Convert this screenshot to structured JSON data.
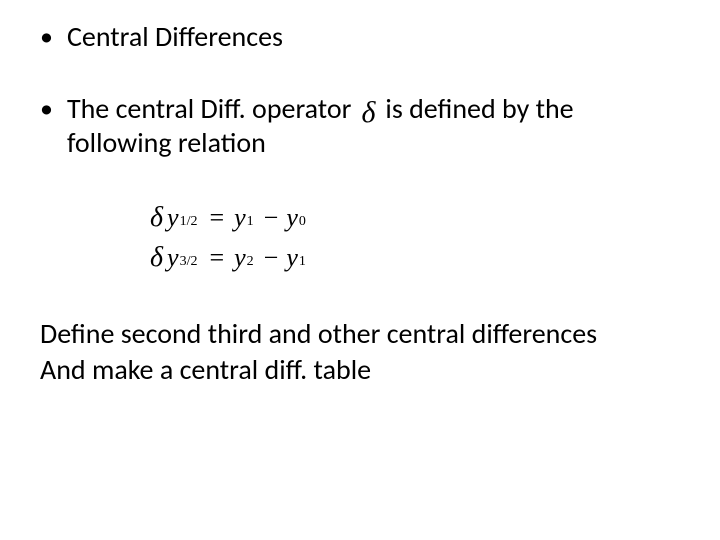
{
  "text_color": "#000000",
  "background_color": "#ffffff",
  "body_font": "Calibri",
  "math_font": "Times New Roman",
  "font_size_body_pt": 28,
  "font_size_math_pt": 26,
  "bullet1": "Central Differences",
  "bullet2_pre": "The central Diff. operator",
  "bullet2_symbol": "δ",
  "bullet2_post": "is defined by the",
  "bullet2_line2": "following relation",
  "equations": {
    "rows": [
      {
        "lhs_delta": "δ",
        "lhs_y": "y",
        "lhs_sub": "1/2",
        "rhs_a_y": "y",
        "rhs_a_sub": "1",
        "op": "−",
        "rhs_b_y": "y",
        "rhs_b_sub": "0"
      },
      {
        "lhs_delta": "δ",
        "lhs_y": "y",
        "lhs_sub": "3/2",
        "rhs_a_y": "y",
        "rhs_a_sub": "2",
        "op": "−",
        "rhs_b_y": "y",
        "rhs_b_sub": "1"
      }
    ]
  },
  "closing_line1": "Define second third and other central differences",
  "closing_line2": "And make a central diff. table"
}
